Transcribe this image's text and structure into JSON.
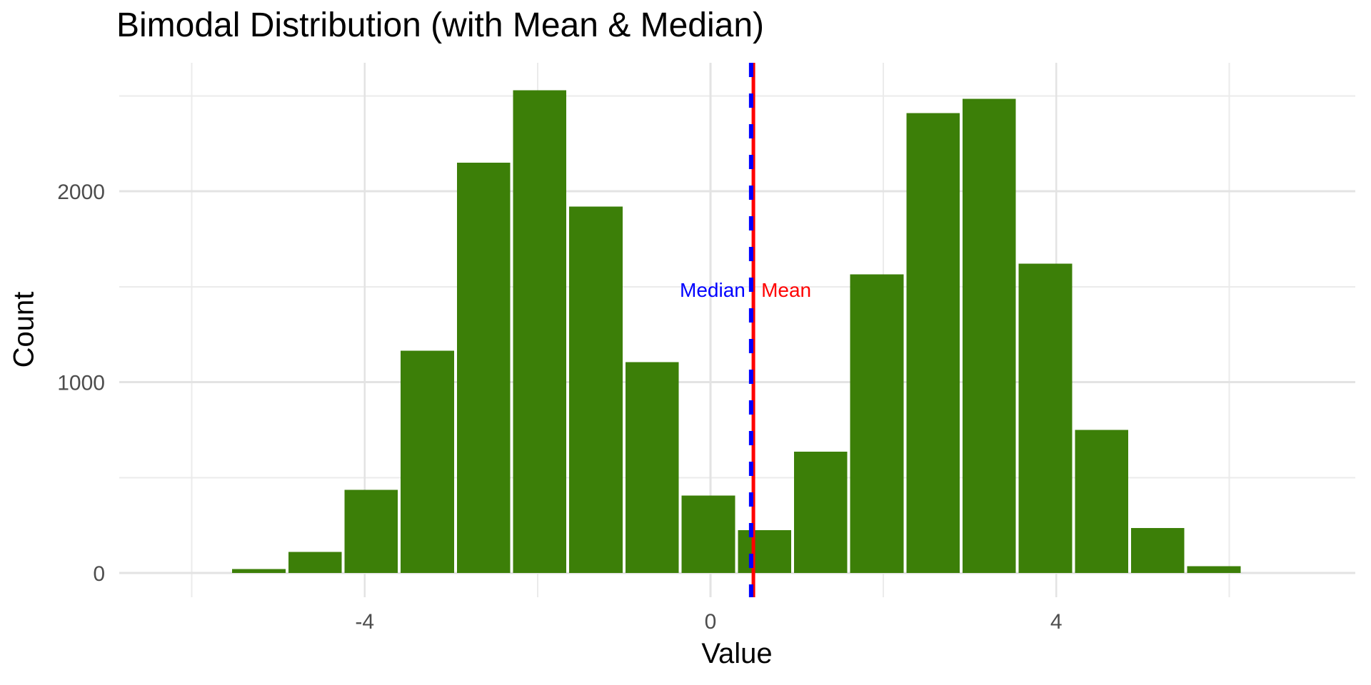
{
  "chart_data": {
    "type": "bar",
    "subtype": "histogram",
    "title": "Bimodal Distribution (with Mean & Median)",
    "xlabel": "Value",
    "ylabel": "Count",
    "xlim": [
      -6.84,
      7.46
    ],
    "ylim": [
      -127,
      2673
    ],
    "grid": true,
    "legend_position": "none",
    "x_ticks": [
      {
        "value": -4,
        "label": "-4"
      },
      {
        "value": 0,
        "label": "0"
      },
      {
        "value": 4,
        "label": "4"
      }
    ],
    "y_ticks": [
      {
        "value": 0,
        "label": "0"
      },
      {
        "value": 1000,
        "label": "1000"
      },
      {
        "value": 2000,
        "label": "2000"
      }
    ],
    "x_gridlines_major": [
      -4,
      0,
      4
    ],
    "x_gridlines_minor": [
      -6,
      -2,
      2,
      6
    ],
    "y_gridlines_major": [
      0,
      1000,
      2000
    ],
    "y_gridlines_minor": [
      500,
      1500,
      2500
    ],
    "binwidth": 0.65,
    "bins": [
      {
        "start": -5.55,
        "end": -4.9,
        "count": 20
      },
      {
        "start": -4.9,
        "end": -4.25,
        "count": 110
      },
      {
        "start": -4.25,
        "end": -3.6,
        "count": 435
      },
      {
        "start": -3.6,
        "end": -2.95,
        "count": 1165
      },
      {
        "start": -2.95,
        "end": -2.3,
        "count": 2150
      },
      {
        "start": -2.3,
        "end": -1.65,
        "count": 2530
      },
      {
        "start": -1.65,
        "end": -1.0,
        "count": 1920
      },
      {
        "start": -1.0,
        "end": -0.35,
        "count": 1105
      },
      {
        "start": -0.35,
        "end": 0.3,
        "count": 405
      },
      {
        "start": 0.3,
        "end": 0.95,
        "count": 225
      },
      {
        "start": 0.95,
        "end": 1.6,
        "count": 635
      },
      {
        "start": 1.6,
        "end": 2.25,
        "count": 1565
      },
      {
        "start": 2.25,
        "end": 2.9,
        "count": 2410
      },
      {
        "start": 2.9,
        "end": 3.55,
        "count": 2485
      },
      {
        "start": 3.55,
        "end": 4.2,
        "count": 1620
      },
      {
        "start": 4.2,
        "end": 4.85,
        "count": 750
      },
      {
        "start": 4.85,
        "end": 5.5,
        "count": 235
      },
      {
        "start": 5.5,
        "end": 6.15,
        "count": 35
      }
    ],
    "reference_lines": {
      "mean": {
        "x": 0.48,
        "label": "Mean",
        "color": "#FF0000",
        "style": "solid"
      },
      "median": {
        "x": 0.47,
        "label": "Median",
        "color": "#0000FF",
        "style": "dashed"
      }
    },
    "colors": {
      "bar_fill": "#3C7F08",
      "bar_gap": "#FFFFFF",
      "grid_major": "#E3E3E3",
      "grid_minor": "#EBEBEB",
      "tick_text": "#4D4D4D",
      "title_text": "#000000"
    }
  }
}
